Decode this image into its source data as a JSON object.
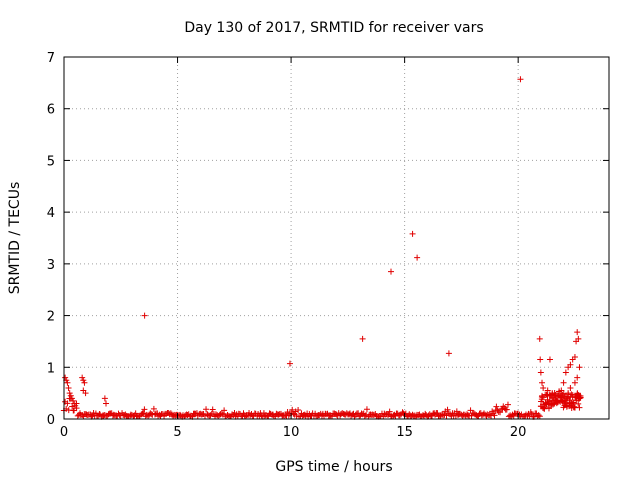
{
  "chart_data": {
    "type": "scatter",
    "title": "Day 130 of 2017, SRMTID for receiver vars",
    "xlabel": "GPS time / hours",
    "ylabel": "SRMTID / TECUs",
    "xlim": [
      0,
      24
    ],
    "ylim": [
      0,
      7
    ],
    "xticks": [
      0,
      5,
      10,
      15,
      20
    ],
    "yticks": [
      0,
      1,
      2,
      3,
      4,
      5,
      6,
      7
    ],
    "xtick_labels": [
      "0",
      "5",
      "10",
      "15",
      "20"
    ],
    "ytick_labels": [
      "0",
      "1",
      "2",
      "3",
      "4",
      "5",
      "6",
      "7"
    ],
    "grid": true,
    "marker": "+",
    "marker_color": "#e00000",
    "series": [
      {
        "name": "SRMTID",
        "outliers": [
          [
            0.05,
            0.8
          ],
          [
            0.1,
            0.75
          ],
          [
            0.15,
            0.7
          ],
          [
            0.2,
            0.6
          ],
          [
            0.25,
            0.5
          ],
          [
            0.3,
            0.45
          ],
          [
            0.35,
            0.4
          ],
          [
            0.4,
            0.35
          ],
          [
            0.45,
            0.3
          ],
          [
            0.55,
            0.3
          ],
          [
            0.8,
            0.8
          ],
          [
            0.85,
            0.75
          ],
          [
            0.9,
            0.7
          ],
          [
            0.95,
            0.5
          ],
          [
            0.85,
            0.55
          ],
          [
            1.8,
            0.4
          ],
          [
            1.85,
            0.3
          ],
          [
            3.55,
            2.0
          ],
          [
            9.95,
            1.07
          ],
          [
            13.15,
            1.55
          ],
          [
            14.4,
            2.85
          ],
          [
            15.35,
            3.58
          ],
          [
            15.55,
            3.12
          ],
          [
            16.95,
            1.27
          ],
          [
            20.1,
            6.57
          ],
          [
            20.95,
            1.55
          ],
          [
            20.97,
            1.15
          ],
          [
            21.0,
            0.9
          ],
          [
            21.05,
            0.7
          ],
          [
            21.1,
            0.6
          ],
          [
            21.4,
            1.15
          ],
          [
            21.3,
            0.55
          ],
          [
            21.5,
            0.5
          ],
          [
            21.7,
            0.45
          ],
          [
            21.9,
            0.55
          ],
          [
            22.0,
            0.7
          ],
          [
            22.1,
            0.9
          ],
          [
            22.2,
            1.0
          ],
          [
            22.3,
            1.05
          ],
          [
            22.4,
            1.15
          ],
          [
            22.5,
            1.2
          ],
          [
            22.55,
            1.5
          ],
          [
            22.6,
            1.68
          ],
          [
            22.65,
            1.55
          ],
          [
            22.7,
            1.0
          ],
          [
            22.6,
            0.8
          ],
          [
            22.5,
            0.7
          ],
          [
            22.3,
            0.6
          ],
          [
            22.2,
            0.5
          ]
        ],
        "baseline": {
          "x_range": [
            0,
            22.8
          ],
          "step": 0.05,
          "level": 0.08
        }
      }
    ]
  }
}
